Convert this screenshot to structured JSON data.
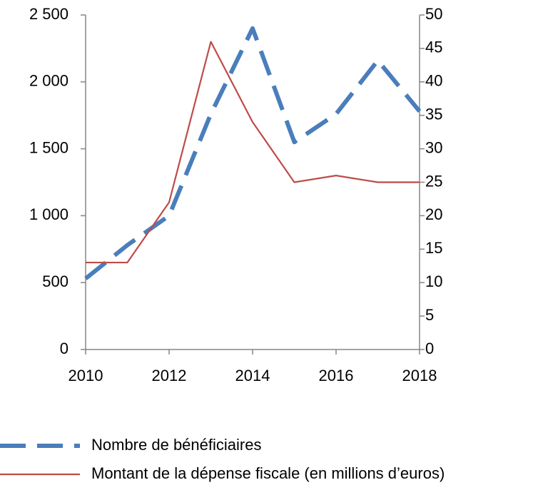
{
  "chart_data": {
    "type": "line",
    "x": [
      2010,
      2011,
      2012,
      2013,
      2014,
      2015,
      2016,
      2017,
      2018
    ],
    "xlim": [
      2010,
      2018
    ],
    "xticks": [
      2010,
      2012,
      2014,
      2016,
      2018
    ],
    "ylim": [
      0,
      2500
    ],
    "yticks": [
      0,
      500,
      {
        "value": 1000,
        "label": "1 000"
      },
      {
        "value": 1500,
        "label": "1 500"
      },
      {
        "value": 2000,
        "label": "2 000"
      },
      {
        "value": 2500,
        "label": "2 500"
      }
    ],
    "y2lim": [
      0,
      50
    ],
    "y2ticks": [
      0,
      5,
      10,
      15,
      20,
      25,
      30,
      35,
      40,
      45,
      50
    ],
    "legend": "bottom",
    "series": [
      {
        "name": "Nombre de bénéficiaires",
        "color": "#4a7ebb",
        "style": "dashed",
        "values": [
          530,
          780,
          1000,
          1760,
          2400,
          1550,
          1760,
          2160,
          1780
        ]
      },
      {
        "name": "Montant de la dépense fiscale (en millions d’euros)",
        "color": "#be4b48",
        "style": "solid",
        "axis": "y2",
        "values": [
          13,
          13,
          22,
          46,
          34,
          25,
          26,
          25,
          25
        ]
      }
    ]
  }
}
